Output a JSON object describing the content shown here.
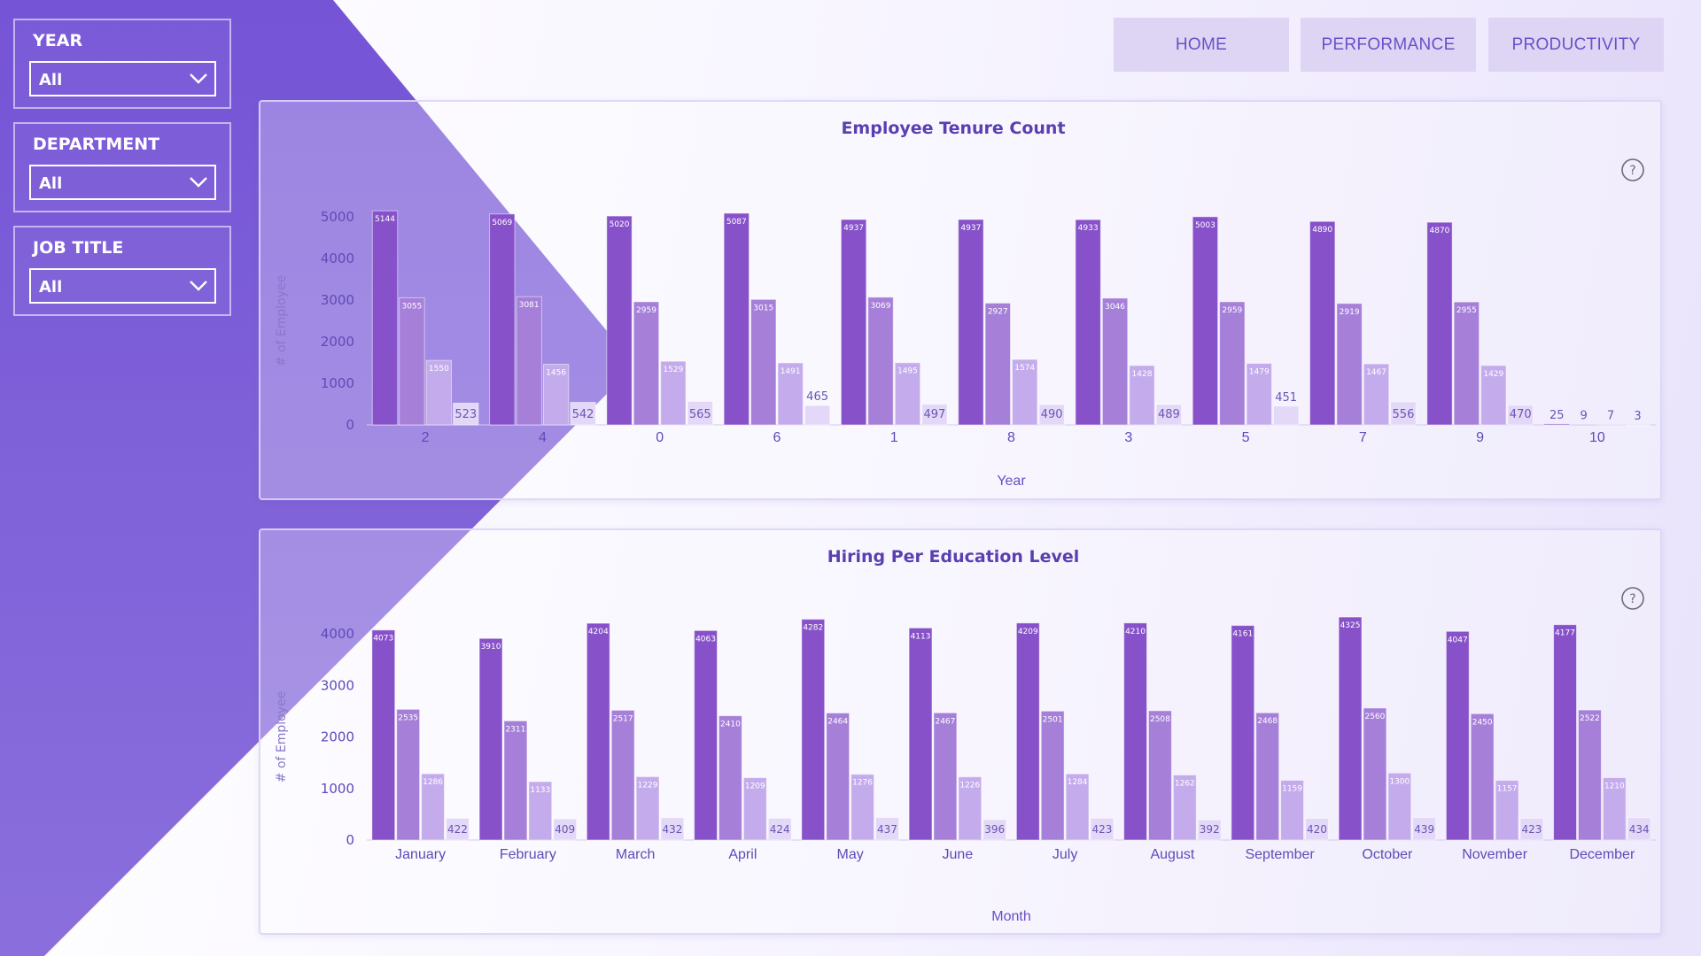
{
  "slicers": [
    {
      "label": "YEAR",
      "value": "All"
    },
    {
      "label": "DEPARTMENT",
      "value": "All"
    },
    {
      "label": "JOB TITLE",
      "value": "All"
    }
  ],
  "nav": {
    "home": "HOME",
    "performance": "PERFORMANCE",
    "productivity": "PRODUCTIVITY"
  },
  "icons": {
    "help": "help-circle-icon",
    "dropdown": "chevron-down-icon"
  },
  "colors": {
    "background_shape": "#7857d6",
    "accent": "#6c4fc9",
    "series": [
      "#8752c9",
      "#a57fd8",
      "#c4acec",
      "#e3d8f7"
    ]
  },
  "chart_data": [
    {
      "type": "bar",
      "title": "Employee Tenure Count",
      "xlabel": "Year",
      "ylabel": "# of Employee",
      "ylim": [
        0,
        5000
      ],
      "yticks": [
        0,
        1000,
        2000,
        3000,
        4000,
        5000
      ],
      "grid": false,
      "categories": [
        "2",
        "4",
        "0",
        "6",
        "1",
        "8",
        "3",
        "5",
        "7",
        "9",
        "10"
      ],
      "series": [
        {
          "values": [
            5144,
            5069,
            5020,
            5087,
            4937,
            4937,
            4933,
            5003,
            4890,
            4870,
            25
          ]
        },
        {
          "values": [
            3055,
            3081,
            2959,
            3015,
            3069,
            2927,
            3046,
            2959,
            2919,
            2955,
            9
          ]
        },
        {
          "values": [
            1550,
            1456,
            1529,
            1491,
            1495,
            1574,
            1428,
            1479,
            1467,
            1429,
            7
          ]
        },
        {
          "values": [
            523,
            542,
            565,
            465,
            497,
            490,
            489,
            451,
            556,
            470,
            3
          ]
        }
      ]
    },
    {
      "type": "bar",
      "title": "Hiring Per Education Level",
      "xlabel": "Month",
      "ylabel": "# of Employee",
      "ylim": [
        0,
        4000
      ],
      "yticks": [
        0,
        1000,
        2000,
        3000,
        4000
      ],
      "grid": false,
      "categories": [
        "January",
        "February",
        "March",
        "April",
        "May",
        "June",
        "July",
        "August",
        "September",
        "October",
        "November",
        "December"
      ],
      "series": [
        {
          "values": [
            4073,
            3910,
            4204,
            4063,
            4282,
            4113,
            4209,
            4210,
            4161,
            4325,
            4047,
            4177
          ]
        },
        {
          "values": [
            2535,
            2311,
            2517,
            2410,
            2464,
            2467,
            2501,
            2508,
            2468,
            2560,
            2450,
            2522
          ]
        },
        {
          "values": [
            1286,
            1133,
            1229,
            1209,
            1276,
            1226,
            1284,
            1262,
            1159,
            1300,
            1157,
            1210
          ]
        },
        {
          "values": [
            422,
            409,
            432,
            424,
            437,
            396,
            423,
            392,
            420,
            439,
            423,
            434
          ]
        }
      ]
    }
  ]
}
